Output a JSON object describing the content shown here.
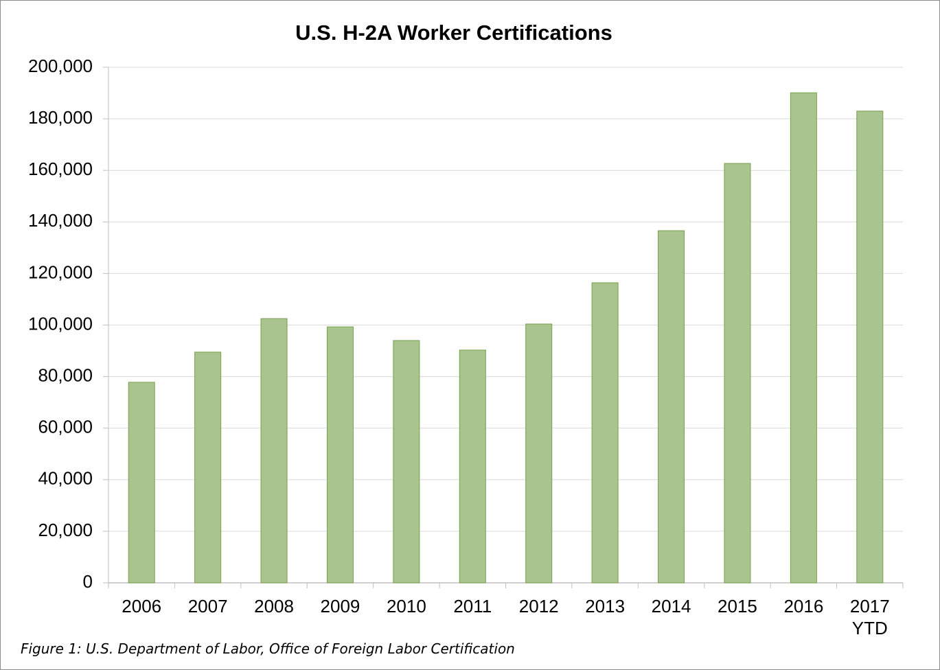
{
  "chart_data": {
    "type": "bar",
    "title": "U.S. H-2A Worker Certifications",
    "categories": [
      "2006",
      "2007",
      "2008",
      "2009",
      "2010",
      "2011",
      "2012",
      "2013",
      "2014",
      "2015",
      "2016",
      "2017 YTD"
    ],
    "values": [
      77800,
      89500,
      102500,
      99300,
      94000,
      90300,
      100400,
      116400,
      136600,
      162700,
      190100,
      183000
    ],
    "color": "#a9c48e",
    "ylim": [
      0,
      200000
    ],
    "yticks": [
      0,
      {
        "value": 20000,
        "label": "20,000"
      },
      {
        "value": 40000,
        "label": "40,000"
      },
      {
        "value": 60000,
        "label": "60,000"
      },
      {
        "value": 80000,
        "label": "80,000"
      },
      {
        "value": 100000,
        "label": "100,000"
      },
      {
        "value": 120000,
        "label": "120,000"
      },
      {
        "value": 140000,
        "label": "140,000"
      },
      {
        "value": 160000,
        "label": "160,000"
      },
      {
        "value": 180000,
        "label": "180,000"
      },
      {
        "value": 200000,
        "label": "200,000"
      }
    ],
    "grid": true,
    "caption": "Figure 1: U.S. Department of Labor, Office of Foreign Labor Certification"
  }
}
